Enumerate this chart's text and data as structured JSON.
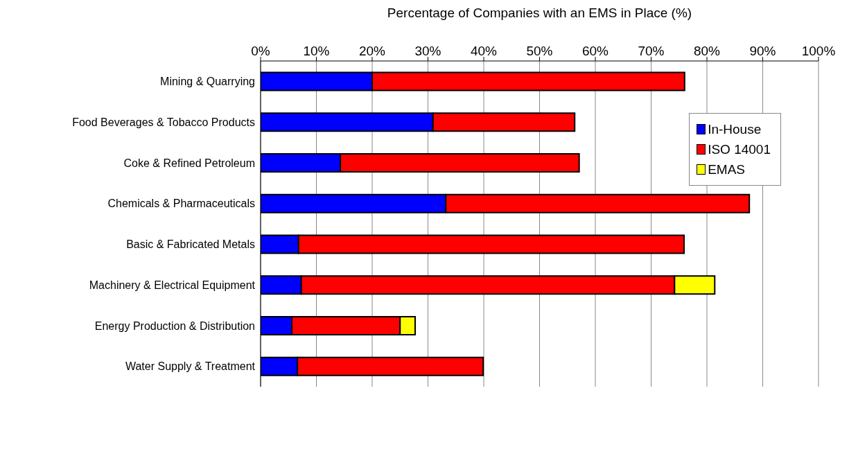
{
  "chart_data": {
    "type": "bar",
    "orientation": "horizontal",
    "stacked": true,
    "xlabel": "Percentage of Companies with an EMS in Place (%)",
    "categories": [
      "Mining & Quarrying",
      "Food Beverages & Tobacco Products",
      "Coke & Refined Petroleum",
      "Chemicals & Pharmaceuticals",
      "Basic & Fabricated Metals",
      "Machinery & Electrical Equipment",
      "Energy Production & Distribution",
      "Water Supply & Treatment"
    ],
    "series": [
      {
        "name": "In-House",
        "color": "#0000ff",
        "values": [
          20.0,
          30.9,
          14.3,
          33.2,
          6.8,
          7.3,
          5.6,
          6.6
        ]
      },
      {
        "name": "ISO 14001",
        "color": "#ff0000",
        "values": [
          56.0,
          25.4,
          42.8,
          54.4,
          69.1,
          66.9,
          19.4,
          33.3
        ]
      },
      {
        "name": "EMAS",
        "color": "#ffff00",
        "values": [
          null,
          null,
          null,
          null,
          null,
          7.2,
          2.7,
          null
        ]
      }
    ],
    "xlim": [
      0,
      100
    ],
    "xticks": [
      {
        "value": 0,
        "label": "0%"
      },
      {
        "value": 10,
        "label": "10%"
      },
      {
        "value": 20,
        "label": "20%"
      },
      {
        "value": 30,
        "label": "30%"
      },
      {
        "value": 40,
        "label": "40%"
      },
      {
        "value": 50,
        "label": "50%"
      },
      {
        "value": 60,
        "label": "60%"
      },
      {
        "value": 70,
        "label": "70%"
      },
      {
        "value": 80,
        "label": "80%"
      },
      {
        "value": 90,
        "label": "90%"
      },
      {
        "value": 100,
        "label": "100%"
      }
    ],
    "grid": "x",
    "legend": "top right"
  }
}
